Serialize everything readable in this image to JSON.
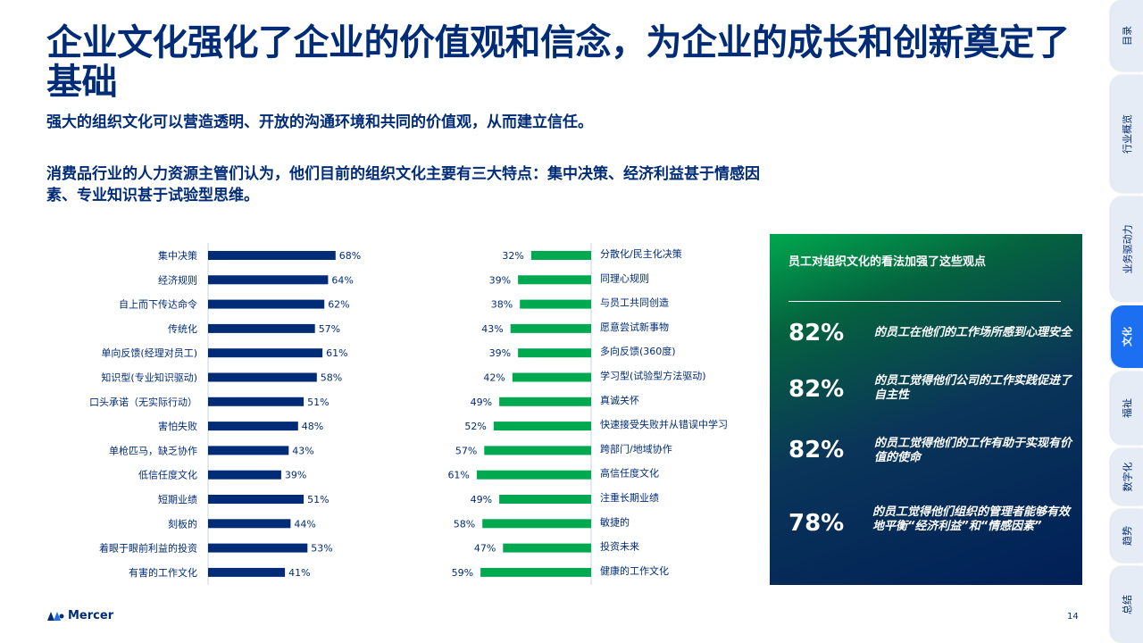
{
  "title": "企业文化强化了企业的价值观和信念，为企业的成长和创新奠定了基础",
  "subtitle": "强大的组织文化可以营造透明、开放的沟通环境和共同的价值观，从而建立信任。",
  "lead": "消费品行业的人力资源主管们认为，他们目前的组织文化主要有三大特点：集中决策、经济利益甚于情感因素、专业知识甚于试验型思维。",
  "colors": {
    "navy": "#002c77",
    "green": "#00a84f",
    "accent_blue": "#1d6ff2"
  },
  "chart_data": [
    {
      "type": "bar",
      "orientation": "horizontal",
      "color": "#002c77",
      "categories": [
        "集中决策",
        "经济规则",
        "自上而下传达命令",
        "传统化",
        "单向反馈(经理对员工)",
        "知识型(专业知识驱动)",
        "口头承诺（无实际行动）",
        "害怕失败",
        "单枪匹马，缺乏协作",
        "低信任度文化",
        "短期业绩",
        "刻板的",
        "着眼于眼前利益的投资",
        "有害的工作文化"
      ],
      "values": [
        68,
        64,
        62,
        57,
        61,
        58,
        51,
        48,
        43,
        39,
        51,
        44,
        53,
        41
      ],
      "unit": "%"
    },
    {
      "type": "bar",
      "orientation": "horizontal",
      "color": "#00a84f",
      "categories": [
        "分散化/民主化决策",
        "同理心规则",
        "与员工共同创造",
        "愿意尝试新事物",
        "多向反馈(360度)",
        "学习型(试验型方法驱动)",
        "真诚关怀",
        "快速接受失败并从错误中学习",
        "跨部门/地域协作",
        "高信任度文化",
        "注重长期业绩",
        "敏捷的",
        "投资未来",
        "健康的工作文化"
      ],
      "values": [
        32,
        39,
        38,
        43,
        39,
        42,
        49,
        52,
        57,
        61,
        49,
        58,
        47,
        59
      ],
      "unit": "%"
    }
  ],
  "panel": {
    "heading": "员工对组织文化的看法加强了这些观点",
    "stats": [
      {
        "pct": "82%",
        "text": "的员工在他们的工作场所感到心理安全"
      },
      {
        "pct": "82%",
        "text": "的员工觉得他们公司的工作实践促进了自主性"
      },
      {
        "pct": "82%",
        "text": "的员工觉得他们的工作有助于实现有价值的使命"
      },
      {
        "pct": "78%",
        "text": "的员工觉得他们组织的管理者能够有效地平衡“经济利益”和“情感因素”"
      }
    ]
  },
  "side_nav": {
    "tabs": [
      {
        "label": "目录",
        "active": false
      },
      {
        "label": "行业概览",
        "active": false
      },
      {
        "label": "业务驱动力",
        "active": false
      },
      {
        "label": "文化",
        "active": true
      },
      {
        "label": "福祉",
        "active": false
      },
      {
        "label": "数字化",
        "active": false
      },
      {
        "label": "趋势",
        "active": false
      },
      {
        "label": "总结",
        "active": false
      }
    ]
  },
  "footer": {
    "logo_text": "Mercer",
    "page_number": "14"
  }
}
